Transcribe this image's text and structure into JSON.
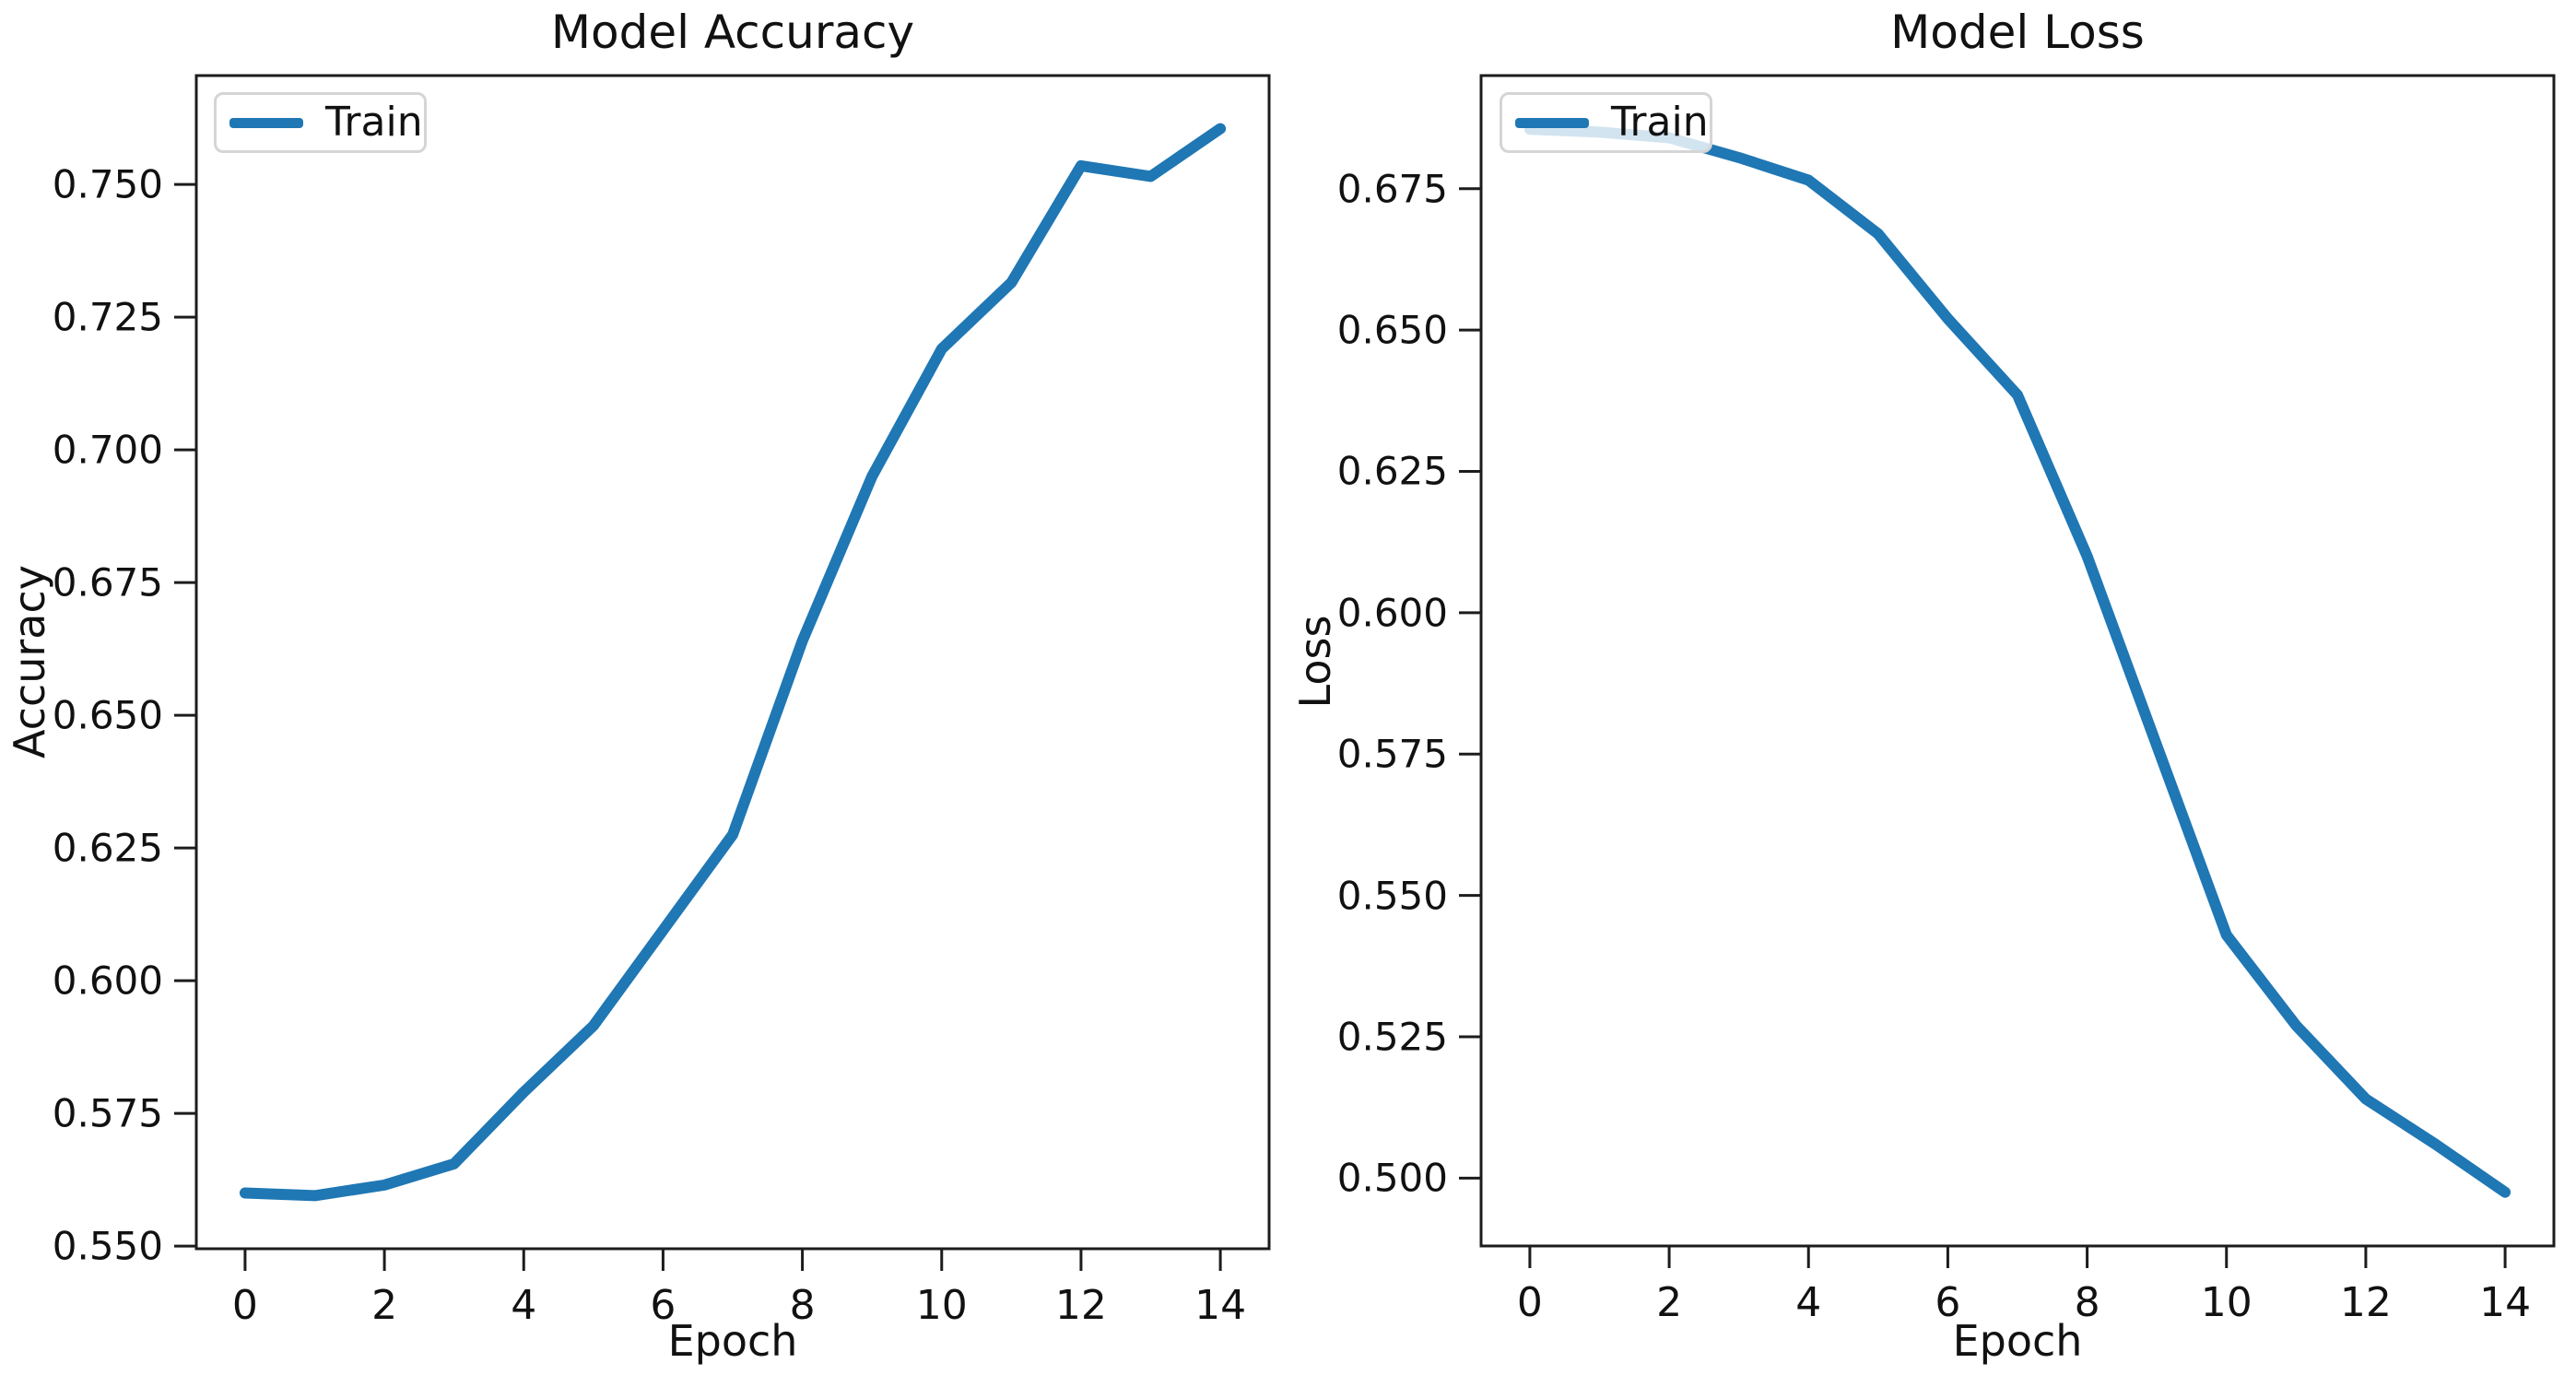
{
  "figure": {
    "background_color": "#ffffff",
    "text_color": "#111111"
  },
  "chart_data": [
    {
      "type": "line",
      "title": "Model Accuracy",
      "xlabel": "Epoch",
      "ylabel": "Accuracy",
      "legend_position": "upper left",
      "grid": false,
      "x": [
        0,
        1,
        2,
        3,
        4,
        5,
        6,
        7,
        8,
        9,
        10,
        11,
        12,
        13,
        14
      ],
      "series": [
        {
          "name": "Train",
          "color": "#1f77b4",
          "values": [
            0.56,
            0.5595,
            0.5615,
            0.5655,
            0.579,
            0.5915,
            0.6095,
            0.6275,
            0.664,
            0.695,
            0.719,
            0.7315,
            0.7535,
            0.7515,
            0.7605
          ]
        }
      ],
      "xlim": [
        -0.7,
        14.7
      ],
      "ylim": [
        0.5495,
        0.7705
      ],
      "xticks": [
        0,
        2,
        4,
        6,
        8,
        10,
        12,
        14
      ],
      "ytick_values": [
        0.55,
        0.575,
        0.6,
        0.625,
        0.65,
        0.675,
        0.7,
        0.725,
        0.75
      ],
      "ytick_labels": [
        "0.550",
        "0.575",
        "0.600",
        "0.625",
        "0.650",
        "0.675",
        "0.700",
        "0.725",
        "0.750"
      ]
    },
    {
      "type": "line",
      "title": "Model Loss",
      "xlabel": "Epoch",
      "ylabel": "Loss",
      "legend_position": "upper left",
      "grid": false,
      "x": [
        0,
        1,
        2,
        3,
        4,
        5,
        6,
        7,
        8,
        9,
        10,
        11,
        12,
        13,
        14
      ],
      "series": [
        {
          "name": "Train",
          "color": "#1f77b4",
          "values": [
            0.6855,
            0.685,
            0.684,
            0.6805,
            0.6765,
            0.667,
            0.652,
            0.6385,
            0.61,
            0.5765,
            0.543,
            0.527,
            0.514,
            0.506,
            0.4975
          ]
        }
      ],
      "xlim": [
        -0.7,
        14.7
      ],
      "ylim": [
        0.488,
        0.695
      ],
      "xticks": [
        0,
        2,
        4,
        6,
        8,
        10,
        12,
        14
      ],
      "ytick_values": [
        0.5,
        0.525,
        0.55,
        0.575,
        0.6,
        0.625,
        0.65,
        0.675
      ],
      "ytick_labels": [
        "0.500",
        "0.525",
        "0.550",
        "0.575",
        "0.600",
        "0.625",
        "0.650",
        "0.675"
      ]
    }
  ]
}
